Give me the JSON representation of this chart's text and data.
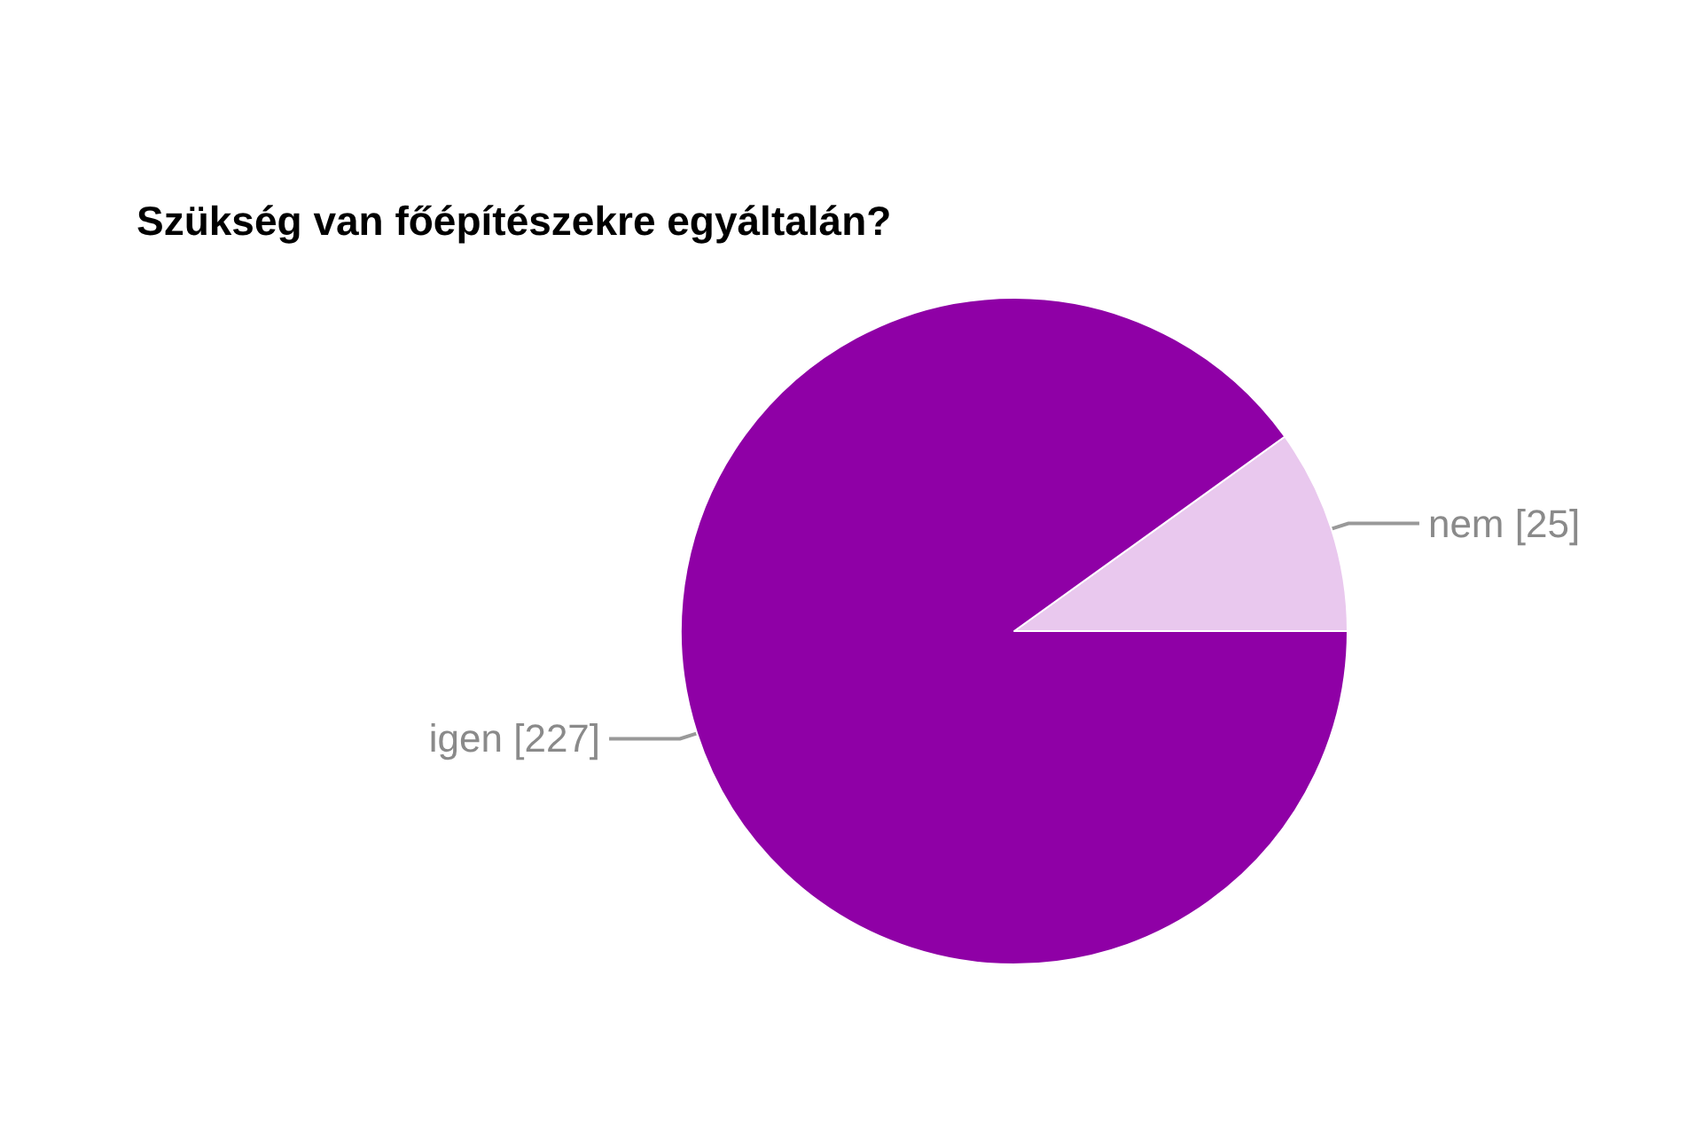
{
  "chart_data": {
    "type": "pie",
    "title": "Szükség van főépítészekre egyáltalán?",
    "categories": [
      "nem",
      "igen"
    ],
    "values": [
      25,
      227
    ],
    "colors": [
      "#e9c8ee",
      "#8f00a6"
    ],
    "value_labels": [
      "[25]",
      "[227]"
    ],
    "legend": false
  }
}
